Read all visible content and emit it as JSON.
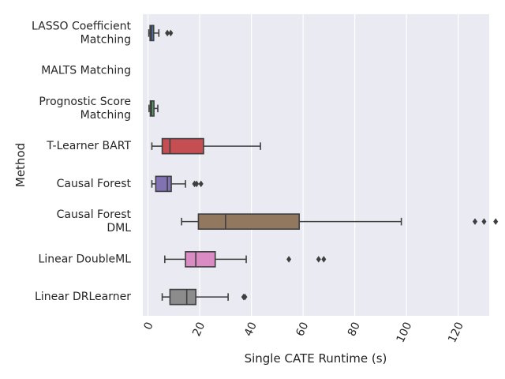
{
  "chart_data": {
    "type": "box",
    "orientation": "horizontal",
    "xlabel": "Single CATE Runtime (s)",
    "ylabel": "Method",
    "xlim": [
      -2,
      132
    ],
    "xticks": [
      0,
      20,
      40,
      60,
      80,
      100,
      120
    ],
    "grid": true,
    "legend": "none",
    "categories": [
      {
        "label": [
          "LASSO Coefficient",
          "Matching"
        ],
        "color": "#4c72b0",
        "whisker_low": 0.3,
        "q1": 0.8,
        "median": 1.3,
        "q3": 2.2,
        "whisker_high": 4.2,
        "outliers": [
          7.5,
          8.8
        ]
      },
      {
        "label": [
          "MALTS Matching"
        ],
        "color": "#dd8452",
        "whisker_low": null,
        "q1": null,
        "median": null,
        "q3": null,
        "whisker_high": null,
        "outliers": []
      },
      {
        "label": [
          "Prognostic Score",
          "Matching"
        ],
        "color": "#55a868",
        "whisker_low": 0.4,
        "q1": 0.9,
        "median": 1.4,
        "q3": 2.3,
        "whisker_high": 3.8,
        "outliers": []
      },
      {
        "label": [
          "T-Learner BART"
        ],
        "color": "#c44e52",
        "whisker_low": 1.5,
        "q1": 5.5,
        "median": 8.5,
        "q3": 21.5,
        "whisker_high": 43.5,
        "outliers": []
      },
      {
        "label": [
          "Causal Forest"
        ],
        "color": "#8172b3",
        "whisker_low": 1.5,
        "q1": 3.0,
        "median": 7.5,
        "q3": 9.0,
        "whisker_high": 14.5,
        "outliers": [
          18.0,
          18.8,
          20.5
        ]
      },
      {
        "label": [
          "Causal Forest",
          "DML"
        ],
        "color": "#937860",
        "whisker_low": 13.0,
        "q1": 19.5,
        "median": 30.0,
        "q3": 58.5,
        "whisker_high": 98.0,
        "outliers": [
          126.5,
          130.0,
          134.5
        ]
      },
      {
        "label": [
          "Linear DoubleML"
        ],
        "color": "#da8bc3",
        "whisker_low": 6.5,
        "q1": 14.5,
        "median": 18.5,
        "q3": 26.0,
        "whisker_high": 38.0,
        "outliers": [
          54.5,
          66.0,
          68.0
        ]
      },
      {
        "label": [
          "Linear DRLearner"
        ],
        "color": "#8c8c8c",
        "whisker_low": 5.5,
        "q1": 8.5,
        "median": 15.0,
        "q3": 18.5,
        "whisker_high": 31.0,
        "outliers": [
          37.0,
          37.5
        ]
      }
    ]
  }
}
